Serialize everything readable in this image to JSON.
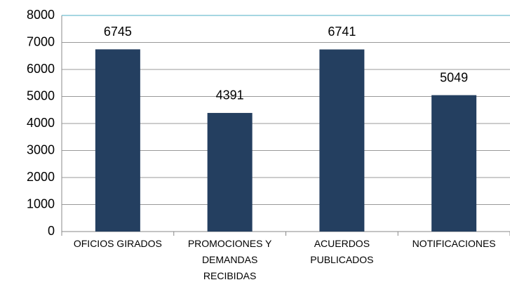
{
  "chart_data": {
    "type": "bar",
    "categories": [
      "OFICIOS GIRADOS",
      "PROMOCIONES Y DEMANDAS RECIBIDAS",
      "ACUERDOS PUBLICADOS",
      "NOTIFICACIONES"
    ],
    "values": [
      6745,
      4391,
      6741,
      5049
    ],
    "color": "#243f60",
    "ylim": [
      0,
      8000
    ],
    "yticks": [
      0,
      1000,
      2000,
      3000,
      4000,
      5000,
      6000,
      7000,
      8000
    ],
    "grid": true
  }
}
